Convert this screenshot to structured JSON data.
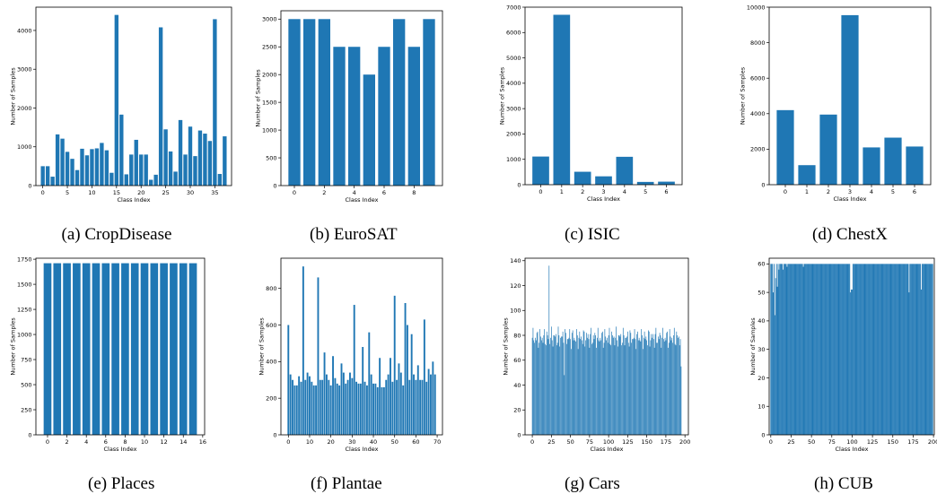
{
  "colors": {
    "bar": "#1f77b4",
    "axis": "#000000"
  },
  "chart_data": [
    {
      "id": "a",
      "caption": "(a) CropDisease",
      "type": "bar",
      "xlabel": "Class Index",
      "ylabel": "Number of Samples",
      "x": [
        0,
        1,
        2,
        3,
        4,
        5,
        6,
        7,
        8,
        9,
        10,
        11,
        12,
        13,
        14,
        15,
        16,
        17,
        18,
        19,
        20,
        21,
        22,
        23,
        24,
        25,
        26,
        27,
        28,
        29,
        30,
        31,
        32,
        33,
        34,
        35,
        36,
        37
      ],
      "values": [
        500,
        500,
        230,
        1320,
        1210,
        870,
        690,
        400,
        950,
        780,
        940,
        960,
        1100,
        910,
        330,
        4400,
        1830,
        290,
        800,
        1180,
        800,
        800,
        150,
        280,
        4080,
        1450,
        880,
        360,
        1690,
        800,
        1520,
        760,
        1420,
        1340,
        1150,
        4290,
        300,
        1270
      ],
      "xlim": [
        -1.4,
        38.4
      ],
      "ylim": [
        0,
        4600
      ],
      "xticks": [
        0,
        5,
        10,
        15,
        20,
        25,
        30,
        35
      ],
      "yticks": [
        0,
        1000,
        2000,
        3000,
        4000
      ],
      "bar_width": 0.8
    },
    {
      "id": "b",
      "caption": "(b) EuroSAT",
      "type": "bar",
      "xlabel": "Class Index",
      "ylabel": "Number of Samples",
      "x": [
        0,
        1,
        2,
        3,
        4,
        5,
        6,
        7,
        8,
        9
      ],
      "values": [
        3000,
        3000,
        3000,
        2500,
        2500,
        2000,
        2500,
        3000,
        2500,
        3000
      ],
      "xlim": [
        -0.9,
        9.9
      ],
      "ylim": [
        0,
        3150
      ],
      "xticks": [
        0,
        2,
        4,
        6,
        8
      ],
      "yticks": [
        0,
        500,
        1000,
        1500,
        2000,
        2500,
        3000
      ],
      "bar_width": 0.8
    },
    {
      "id": "c",
      "caption": "(c) ISIC",
      "type": "bar",
      "xlabel": "Class Index",
      "ylabel": "Number of Samples",
      "x": [
        0,
        1,
        2,
        3,
        4,
        5,
        6
      ],
      "values": [
        1110,
        6700,
        510,
        330,
        1100,
        110,
        120
      ],
      "xlim": [
        -0.75,
        6.75
      ],
      "ylim": [
        0,
        7000
      ],
      "xticks": [
        0,
        1,
        2,
        3,
        4,
        5,
        6
      ],
      "yticks": [
        0,
        1000,
        2000,
        3000,
        4000,
        5000,
        6000,
        7000
      ],
      "bar_width": 0.8
    },
    {
      "id": "d",
      "caption": "(d) ChestX",
      "type": "bar",
      "xlabel": "Class Index",
      "ylabel": "Number of Samples",
      "x": [
        0,
        1,
        2,
        3,
        4,
        5,
        6
      ],
      "values": [
        4200,
        1100,
        3950,
        9550,
        2100,
        2650,
        2150
      ],
      "xlim": [
        -0.75,
        6.75
      ],
      "ylim": [
        0,
        10000
      ],
      "xticks": [
        0,
        1,
        2,
        3,
        4,
        5,
        6
      ],
      "yticks": [
        0,
        2000,
        4000,
        6000,
        8000,
        10000
      ],
      "bar_width": 0.8
    },
    {
      "id": "e",
      "caption": "(e) Places",
      "type": "bar",
      "xlabel": "Class Index",
      "ylabel": "Number of Samples",
      "x": [
        0,
        1,
        2,
        3,
        4,
        5,
        6,
        7,
        8,
        9,
        10,
        11,
        12,
        13,
        14,
        15
      ],
      "values": [
        1710,
        1710,
        1710,
        1710,
        1710,
        1710,
        1710,
        1710,
        1710,
        1710,
        1710,
        1710,
        1710,
        1710,
        1710,
        1710
      ],
      "xlim": [
        -1.2,
        16.2
      ],
      "ylim": [
        0,
        1760
      ],
      "xticks": [
        0,
        2,
        4,
        6,
        8,
        10,
        12,
        14,
        16
      ],
      "yticks": [
        0,
        250,
        500,
        750,
        1000,
        1250,
        1500,
        1750
      ],
      "bar_width": 0.8
    },
    {
      "id": "f",
      "caption": "(f) Plantae",
      "type": "bar",
      "xlabel": "Class Index",
      "ylabel": "Number of Samples",
      "x": [
        0,
        1,
        2,
        3,
        4,
        5,
        6,
        7,
        8,
        9,
        10,
        11,
        12,
        13,
        14,
        15,
        16,
        17,
        18,
        19,
        20,
        21,
        22,
        23,
        24,
        25,
        26,
        27,
        28,
        29,
        30,
        31,
        32,
        33,
        34,
        35,
        36,
        37,
        38,
        39,
        40,
        41,
        42,
        43,
        44,
        45,
        46,
        47,
        48,
        49,
        50,
        51,
        52,
        53,
        54,
        55,
        56,
        57,
        58,
        59,
        60,
        61,
        62,
        63,
        64,
        65,
        66,
        67,
        68,
        69
      ],
      "values": [
        600,
        330,
        300,
        270,
        270,
        320,
        290,
        920,
        300,
        340,
        320,
        290,
        270,
        270,
        860,
        300,
        300,
        450,
        330,
        300,
        270,
        430,
        310,
        280,
        270,
        390,
        340,
        280,
        300,
        340,
        310,
        710,
        290,
        280,
        280,
        480,
        290,
        270,
        560,
        330,
        280,
        280,
        260,
        420,
        260,
        260,
        300,
        330,
        420,
        290,
        760,
        300,
        390,
        340,
        270,
        720,
        600,
        300,
        550,
        330,
        300,
        380,
        300,
        300,
        630,
        290,
        360,
        330,
        400,
        330
      ],
      "xlim": [
        -3.5,
        72.5
      ],
      "ylim": [
        0,
        965
      ],
      "xticks": [
        0,
        10,
        20,
        30,
        40,
        50,
        60,
        70
      ],
      "yticks": [
        0,
        200,
        400,
        600,
        800
      ],
      "bar_width": 0.8
    },
    {
      "id": "g",
      "caption": "(g) Cars",
      "type": "bar",
      "xlabel": "Class Index",
      "ylabel": "Number of Samples",
      "n": 196,
      "base": 78,
      "amp": 9,
      "outliers": {
        "22": 136,
        "42": 48,
        "195": 55
      },
      "xlim": [
        -9.5,
        204.5
      ],
      "ylim": [
        0,
        142
      ],
      "xticks": [
        0,
        25,
        50,
        75,
        100,
        125,
        150,
        175,
        200
      ],
      "yticks": [
        0,
        20,
        40,
        60,
        80,
        100,
        120,
        140
      ],
      "bar_width": 0.8
    },
    {
      "id": "h",
      "caption": "(h) CUB",
      "type": "bar",
      "xlabel": "Class Index",
      "ylabel": "Number of Samples",
      "n": 200,
      "base": 60,
      "overrides": {
        "3": 50,
        "5": 42,
        "6": 55,
        "8": 52,
        "10": 58,
        "15": 58,
        "20": 59,
        "40": 59,
        "98": 50,
        "99": 51,
        "100": 51,
        "170": 50,
        "185": 51
      },
      "xlim": [
        -2,
        201
      ],
      "ylim": [
        0,
        62
      ],
      "xticks": [
        0,
        25,
        50,
        75,
        100,
        125,
        150,
        175,
        200
      ],
      "yticks": [
        0,
        10,
        20,
        30,
        40,
        50,
        60
      ],
      "bar_width": 1.0
    }
  ]
}
